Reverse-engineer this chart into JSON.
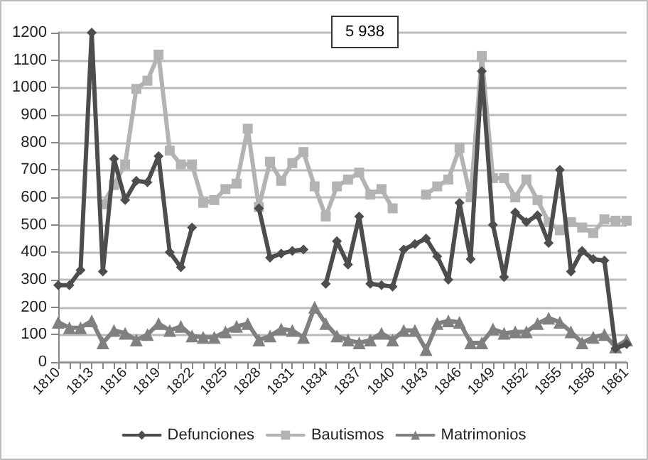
{
  "chart_data": {
    "type": "line",
    "categories": [
      "1810",
      null,
      null,
      "1813",
      null,
      null,
      "1816",
      null,
      null,
      "1819",
      null,
      null,
      "1822",
      null,
      null,
      "1825",
      null,
      null,
      "1828",
      null,
      null,
      "1831",
      null,
      null,
      "1834",
      null,
      null,
      "1837",
      null,
      null,
      "1840",
      null,
      null,
      "1843",
      null,
      null,
      "1846",
      null,
      null,
      "1849",
      null,
      null,
      "1852",
      null,
      null,
      "1855",
      null,
      null,
      "1858",
      null,
      null,
      "1861"
    ],
    "series": [
      {
        "name": "Defunciones",
        "color": "#4d4d4d",
        "marker": "diamond",
        "values": [
          280,
          280,
          335,
          1200,
          330,
          740,
          590,
          660,
          655,
          750,
          400,
          345,
          490,
          null,
          null,
          null,
          null,
          null,
          560,
          380,
          395,
          405,
          410,
          null,
          285,
          440,
          355,
          530,
          285,
          280,
          275,
          410,
          430,
          450,
          385,
          300,
          580,
          375,
          1060,
          500,
          310,
          545,
          510,
          535,
          434,
          700,
          330,
          405,
          375,
          370,
          50,
          65
        ]
      },
      {
        "name": "Bautismos",
        "color": "#b3b3b3",
        "marker": "square",
        "values": [
          null,
          null,
          null,
          null,
          575,
          645,
          720,
          995,
          1025,
          1120,
          770,
          720,
          720,
          580,
          590,
          630,
          650,
          850,
          565,
          730,
          660,
          725,
          765,
          640,
          530,
          640,
          665,
          690,
          610,
          630,
          560,
          null,
          null,
          610,
          640,
          665,
          780,
          600,
          1115,
          670,
          670,
          600,
          665,
          590,
          510,
          480,
          510,
          490,
          470,
          520,
          515,
          515
        ]
      },
      {
        "name": "Matrimonios",
        "color": "#808080",
        "marker": "triangle",
        "values": [
          145,
          125,
          125,
          150,
          70,
          115,
          105,
          80,
          100,
          140,
          115,
          130,
          95,
          90,
          90,
          110,
          130,
          140,
          80,
          95,
          120,
          115,
          90,
          200,
          140,
          95,
          80,
          70,
          80,
          105,
          80,
          115,
          115,
          45,
          140,
          150,
          145,
          70,
          70,
          120,
          105,
          110,
          110,
          140,
          160,
          145,
          110,
          70,
          90,
          100,
          55,
          80
        ]
      }
    ],
    "ylim": [
      0,
      1200
    ],
    "yticks": [
      0,
      100,
      200,
      300,
      400,
      500,
      600,
      700,
      800,
      900,
      1000,
      1100,
      1200
    ],
    "annotations": [
      "5 938"
    ],
    "grid": "y",
    "legend": "bottom",
    "line_style": "solid"
  }
}
